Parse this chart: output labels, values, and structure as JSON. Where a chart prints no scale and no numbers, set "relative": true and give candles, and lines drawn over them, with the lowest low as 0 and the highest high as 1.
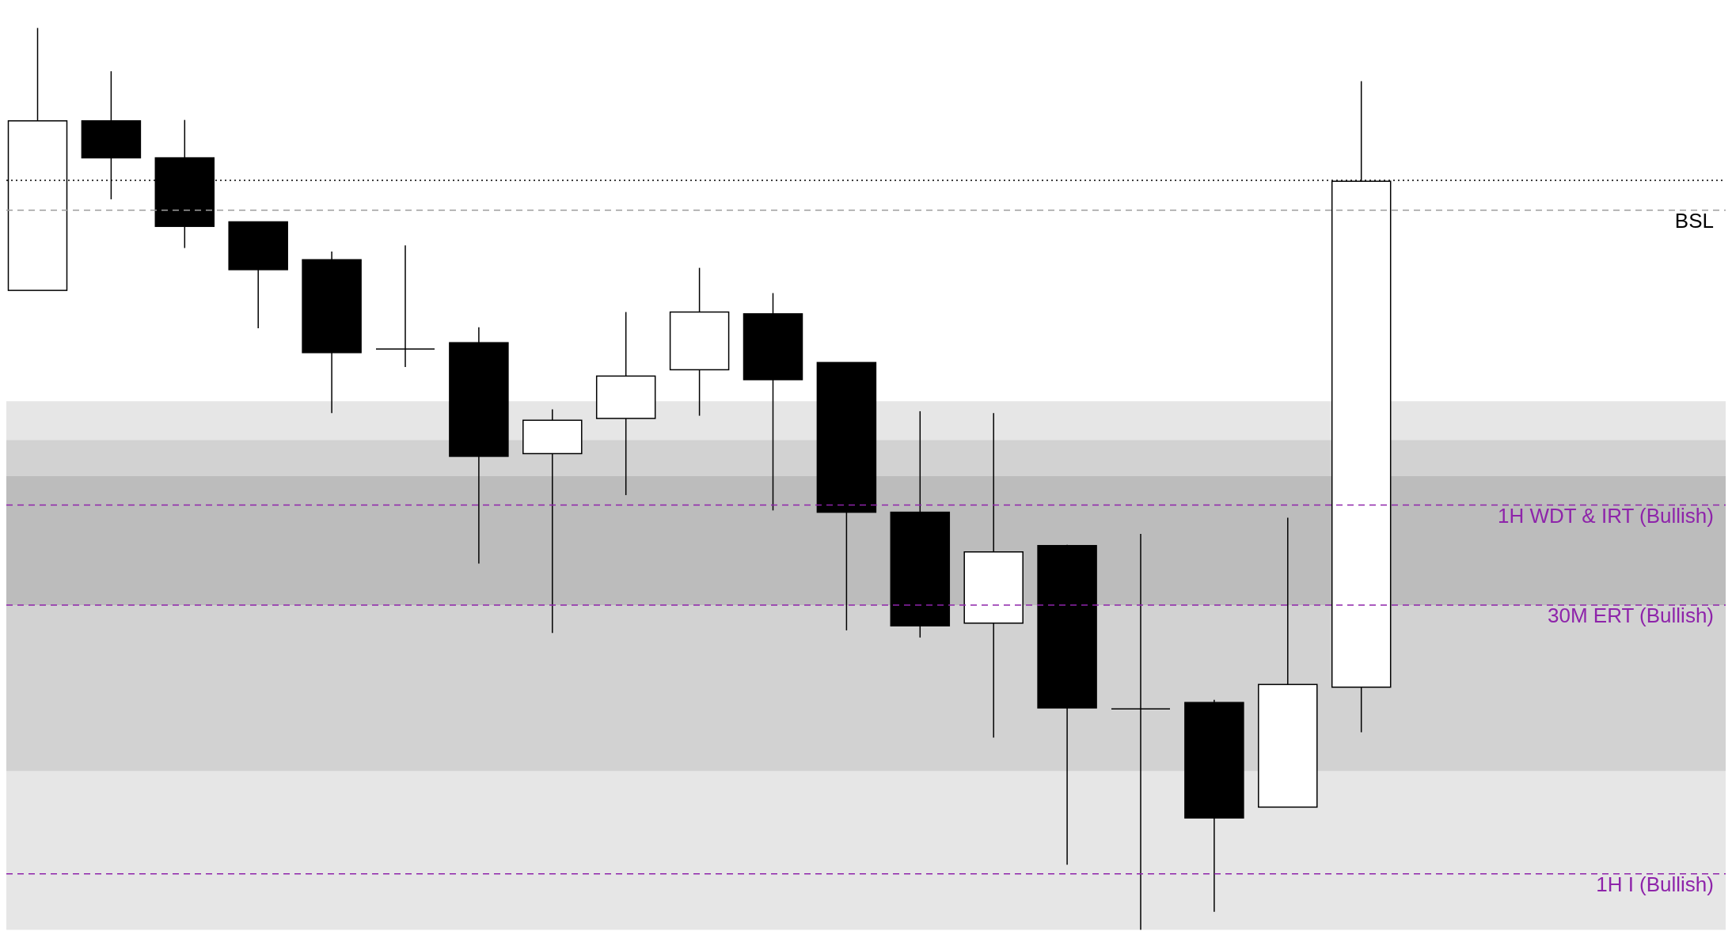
{
  "chart_data": {
    "type": "candlestick",
    "relative": true,
    "categories": [
      null,
      null,
      null,
      null,
      null,
      null,
      null,
      null,
      null,
      null,
      null,
      null,
      null,
      null,
      null,
      null,
      null,
      null,
      null
    ],
    "ohlc": [
      [
        0.709,
        1.0,
        0.709,
        0.897
      ],
      [
        0.897,
        0.952,
        0.81,
        0.856
      ],
      [
        0.856,
        0.898,
        0.756,
        0.78
      ],
      [
        0.785,
        0.785,
        0.667,
        0.732
      ],
      [
        0.743,
        0.752,
        0.573,
        0.64
      ],
      [
        0.644,
        0.759,
        0.624,
        0.644
      ],
      [
        0.651,
        0.668,
        0.406,
        0.525
      ],
      [
        0.528,
        0.577,
        0.329,
        0.565
      ],
      [
        0.567,
        0.685,
        0.482,
        0.614
      ],
      [
        0.621,
        0.734,
        0.57,
        0.685
      ],
      [
        0.683,
        0.706,
        0.465,
        0.61
      ],
      [
        0.629,
        0.629,
        0.332,
        0.463
      ],
      [
        0.463,
        0.575,
        0.324,
        0.337
      ],
      [
        0.34,
        0.573,
        0.213,
        0.419
      ],
      [
        0.426,
        0.427,
        0.072,
        0.246
      ],
      [
        0.245,
        0.439,
        0.0,
        0.245
      ],
      [
        0.252,
        0.255,
        0.02,
        0.124
      ],
      [
        0.136,
        0.457,
        0.136,
        0.272
      ],
      [
        0.269,
        0.941,
        0.219,
        0.83
      ]
    ],
    "bands": [
      {
        "axis": "y",
        "from": 0.0,
        "to": 0.586,
        "color": "#e6e6e6"
      },
      {
        "axis": "y",
        "from": 0.176,
        "to": 0.543,
        "color": "#d2d2d2"
      },
      {
        "axis": "y",
        "from": 0.36,
        "to": 0.503,
        "color": "#bcbcbc"
      }
    ],
    "ref_lines": [
      {
        "axis": "y",
        "value": 0.831,
        "color": "#000000",
        "line_style": "dotted"
      },
      {
        "axis": "y",
        "value": 0.798,
        "label": "BSL",
        "color": "#9e9e9e",
        "line_style": "dashed"
      },
      {
        "axis": "y",
        "value": 0.471,
        "label": "1H WDT & IRT (Bullish)",
        "color": "#8e24aa",
        "line_style": "dashed"
      },
      {
        "axis": "y",
        "value": 0.36,
        "label": "30M ERT (Bullish)",
        "color": "#8e24aa",
        "line_style": "dashed"
      },
      {
        "axis": "y",
        "value": 0.062,
        "label": "1H I (Bullish)",
        "color": "#8e24aa",
        "line_style": "dashed"
      }
    ]
  }
}
